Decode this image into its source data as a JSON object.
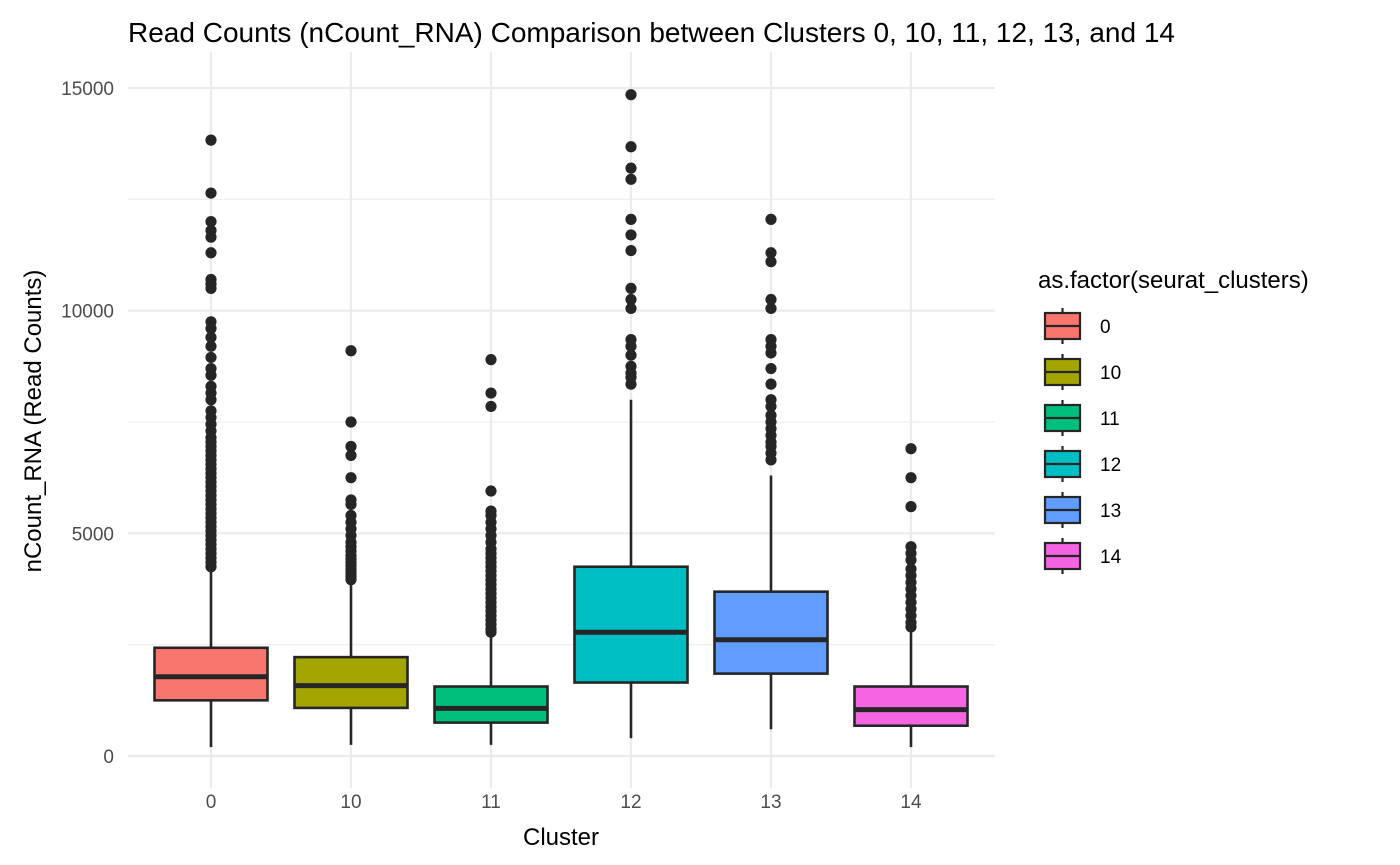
{
  "chart_data": {
    "type": "boxplot",
    "title": "Read Counts (nCount_RNA) Comparison between Clusters 0, 10, 11, 12, 13, and 14",
    "xlabel": "Cluster",
    "ylabel": "nCount_RNA (Read Counts)",
    "categories": [
      "0",
      "10",
      "11",
      "12",
      "13",
      "14"
    ],
    "ylim": [
      -700,
      15700
    ],
    "yticks": [
      0,
      5000,
      10000,
      15000
    ],
    "grid": true,
    "legend": {
      "title": "as.factor(seurat_clusters)",
      "position": "right",
      "entries": [
        "0",
        "10",
        "11",
        "12",
        "13",
        "14"
      ]
    },
    "series": [
      {
        "category": "0",
        "color": "#F8766D",
        "whisker_low": 200,
        "q1": 1250,
        "median": 1780,
        "q3": 2430,
        "whisker_high": 4150,
        "outliers": [
          13830,
          12640,
          12000,
          11800,
          11650,
          11300,
          10700,
          10600,
          10500,
          9750,
          9600,
          9400,
          9200,
          8950,
          8700,
          8550,
          8300,
          8150,
          8000,
          7750,
          7600,
          7450,
          7300,
          7150,
          7050,
          6950,
          6850,
          6750,
          6650,
          6550,
          6450,
          6350,
          6250,
          6150,
          6050,
          5950,
          5850,
          5750,
          5650,
          5550,
          5450,
          5350,
          5250,
          5150,
          5050,
          4950,
          4850,
          4750,
          4650,
          4550,
          4450,
          4350,
          4250
        ]
      },
      {
        "category": "10",
        "color": "#A3A500",
        "whisker_low": 250,
        "q1": 1080,
        "median": 1580,
        "q3": 2220,
        "whisker_high": 3850,
        "outliers": [
          9100,
          7500,
          6950,
          6750,
          6250,
          5750,
          5650,
          5400,
          5250,
          5100,
          4950,
          4800,
          4700,
          4600,
          4500,
          4420,
          4350,
          4280,
          4200,
          4140,
          4080,
          4020,
          3960
        ]
      },
      {
        "category": "11",
        "color": "#00BF7D",
        "whisker_low": 250,
        "q1": 750,
        "median": 1070,
        "q3": 1560,
        "whisker_high": 2700,
        "outliers": [
          8900,
          8150,
          7850,
          5950,
          5500,
          5400,
          5250,
          5100,
          4950,
          4800,
          4650,
          4550,
          4450,
          4350,
          4250,
          4150,
          4050,
          3950,
          3850,
          3750,
          3650,
          3550,
          3450,
          3350,
          3250,
          3150,
          3050,
          2950,
          2850,
          2780
        ]
      },
      {
        "category": "12",
        "color": "#00BFC4",
        "whisker_low": 400,
        "q1": 1650,
        "median": 2780,
        "q3": 4250,
        "whisker_high": 8000,
        "outliers": [
          14850,
          13680,
          13200,
          12950,
          12050,
          11700,
          11350,
          10500,
          10250,
          10050,
          9350,
          9200,
          9000,
          8750,
          8600,
          8500,
          8350
        ]
      },
      {
        "category": "13",
        "color": "#619CFF",
        "whisker_low": 600,
        "q1": 1850,
        "median": 2610,
        "q3": 3690,
        "whisker_high": 6300,
        "outliers": [
          12050,
          11300,
          11100,
          10250,
          10050,
          9350,
          9200,
          9050,
          8700,
          8350,
          8000,
          7850,
          7650,
          7500,
          7350,
          7200,
          7050,
          6950,
          6800,
          6650
        ]
      },
      {
        "category": "14",
        "color": "#F564E3",
        "whisker_low": 200,
        "q1": 680,
        "median": 1040,
        "q3": 1560,
        "whisker_high": 2850,
        "outliers": [
          6900,
          6250,
          5600,
          4700,
          4550,
          4400,
          4200,
          4050,
          3900,
          3750,
          3600,
          3450,
          3300,
          3150,
          3000,
          2900
        ]
      }
    ]
  }
}
